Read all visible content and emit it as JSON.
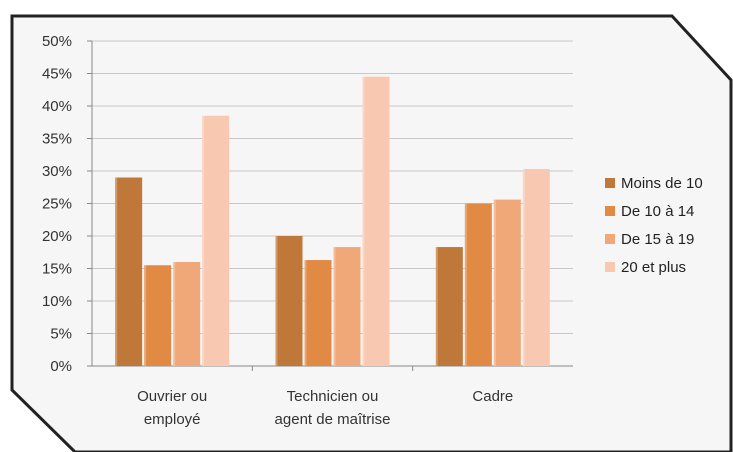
{
  "colors": {
    "frame_fill": "#f6f6f6",
    "frame_stroke": "#222222",
    "grid": "#c8c8c8",
    "axis": "#888888"
  },
  "chart_data": {
    "type": "bar",
    "title": "",
    "xlabel": "",
    "ylabel": "",
    "ylim": [
      0,
      0.5
    ],
    "ytick_step": 0.05,
    "yticks": [
      "0%",
      "5%",
      "10%",
      "15%",
      "20%",
      "25%",
      "30%",
      "35%",
      "40%",
      "45%",
      "50%"
    ],
    "grid": true,
    "legend_position": "right",
    "categories": [
      [
        "Ouvrier ou",
        "employé"
      ],
      [
        "Technicien ou",
        "agent de maîtrise"
      ],
      [
        "Cadre"
      ]
    ],
    "series": [
      {
        "name": "Moins de 10",
        "color": "#c0783a",
        "values": [
          0.29,
          0.2,
          0.183
        ]
      },
      {
        "name": "De 10 à 14",
        "color": "#e08a44",
        "values": [
          0.155,
          0.163,
          0.25
        ]
      },
      {
        "name": "De 15 à 19",
        "color": "#f0a878",
        "values": [
          0.16,
          0.183,
          0.256
        ]
      },
      {
        "name": "20 et plus",
        "color": "#f8c8b0",
        "values": [
          0.385,
          0.445,
          0.303
        ]
      }
    ]
  }
}
